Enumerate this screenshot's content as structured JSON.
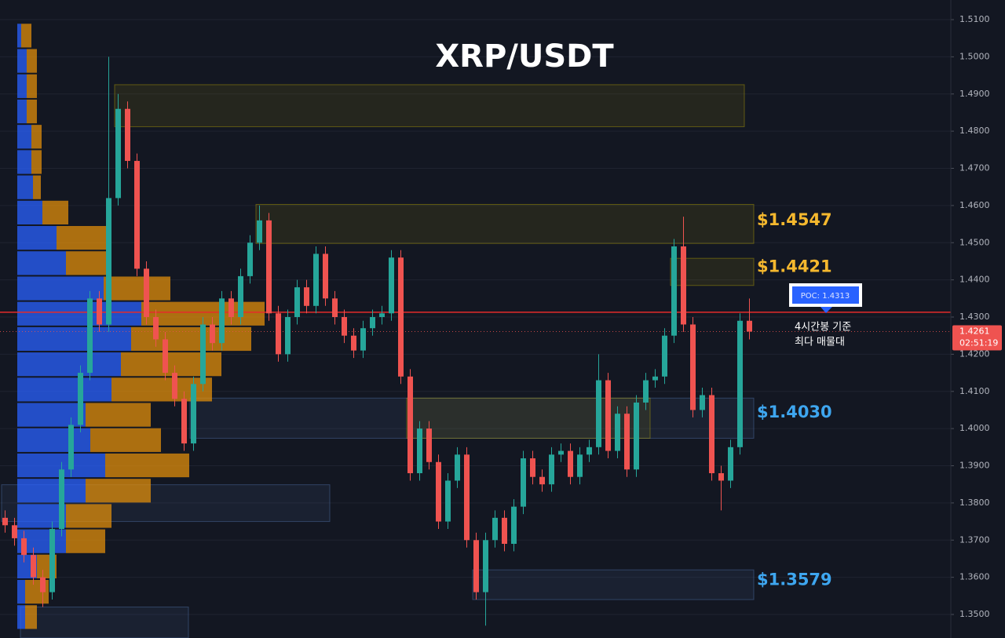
{
  "chart_data": {
    "type": "candlestick",
    "title": "XRP/USDT",
    "ylim": [
      1.34367,
      1.51528
    ],
    "yticks": [
      {
        "value": 1.35,
        "label": "1.3500"
      },
      {
        "value": 1.36,
        "label": "1.3600"
      },
      {
        "value": 1.37,
        "label": "1.3700"
      },
      {
        "value": 1.38,
        "label": "1.3800"
      },
      {
        "value": 1.39,
        "label": "1.3900"
      },
      {
        "value": 1.4,
        "label": "1.4000"
      },
      {
        "value": 1.41,
        "label": "1.4100"
      },
      {
        "value": 1.42,
        "label": "1.4200"
      },
      {
        "value": 1.43,
        "label": "1.4300"
      },
      {
        "value": 1.44,
        "label": "1.4400"
      },
      {
        "value": 1.45,
        "label": "1.4500"
      },
      {
        "value": 1.46,
        "label": "1.4600"
      },
      {
        "value": 1.47,
        "label": "1.4700"
      },
      {
        "value": 1.48,
        "label": "1.4800"
      },
      {
        "value": 1.49,
        "label": "1.4900"
      },
      {
        "value": 1.5,
        "label": "1.5000"
      },
      {
        "value": 1.51,
        "label": "1.5100"
      }
    ],
    "grid": true,
    "up_color": "#26a69a",
    "down_color": "#ef5350",
    "open": [
      1.376,
      1.374,
      1.3705,
      1.366,
      1.36,
      1.356,
      1.373,
      1.389,
      1.401,
      1.415,
      1.435,
      1.428,
      1.462,
      1.486,
      1.472,
      1.443,
      1.43,
      1.424,
      1.415,
      1.408,
      1.396,
      1.412,
      1.428,
      1.423,
      1.435,
      1.43,
      1.441,
      1.45,
      1.456,
      1.431,
      1.42,
      1.43,
      1.438,
      1.433,
      1.447,
      1.435,
      1.43,
      1.425,
      1.421,
      1.427,
      1.43,
      1.431,
      1.446,
      1.414,
      1.388,
      1.4,
      1.391,
      1.375,
      1.386,
      1.393,
      1.37,
      1.356,
      1.37,
      1.376,
      1.369,
      1.379,
      1.392,
      1.387,
      1.385,
      1.393,
      1.394,
      1.387,
      1.393,
      1.395,
      1.413,
      1.394,
      1.404,
      1.389,
      1.407,
      1.413,
      1.414,
      1.425,
      1.449,
      1.428,
      1.405,
      1.409,
      1.388,
      1.386,
      1.395,
      1.429
    ],
    "high": [
      1.378,
      1.376,
      1.3725,
      1.368,
      1.362,
      1.375,
      1.391,
      1.403,
      1.417,
      1.437,
      1.437,
      1.5,
      1.49,
      1.488,
      1.474,
      1.445,
      1.432,
      1.426,
      1.417,
      1.41,
      1.414,
      1.43,
      1.43,
      1.437,
      1.437,
      1.443,
      1.452,
      1.46,
      1.458,
      1.433,
      1.432,
      1.44,
      1.44,
      1.449,
      1.449,
      1.437,
      1.432,
      1.427,
      1.429,
      1.432,
      1.433,
      1.448,
      1.448,
      1.416,
      1.402,
      1.402,
      1.393,
      1.388,
      1.395,
      1.395,
      1.372,
      1.372,
      1.378,
      1.378,
      1.381,
      1.394,
      1.394,
      1.389,
      1.395,
      1.396,
      1.396,
      1.395,
      1.397,
      1.42,
      1.415,
      1.406,
      1.406,
      1.409,
      1.415,
      1.416,
      1.427,
      1.451,
      1.457,
      1.43,
      1.411,
      1.411,
      1.39,
      1.397,
      1.431,
      1.435
    ],
    "low": [
      1.372,
      1.3685,
      1.364,
      1.358,
      1.352,
      1.354,
      1.371,
      1.387,
      1.399,
      1.413,
      1.426,
      1.426,
      1.46,
      1.47,
      1.441,
      1.428,
      1.422,
      1.413,
      1.406,
      1.394,
      1.394,
      1.41,
      1.421,
      1.421,
      1.428,
      1.428,
      1.439,
      1.448,
      1.429,
      1.418,
      1.418,
      1.428,
      1.431,
      1.431,
      1.433,
      1.428,
      1.423,
      1.419,
      1.419,
      1.425,
      1.428,
      1.429,
      1.412,
      1.386,
      1.386,
      1.389,
      1.373,
      1.373,
      1.384,
      1.368,
      1.354,
      1.347,
      1.368,
      1.367,
      1.367,
      1.377,
      1.385,
      1.383,
      1.383,
      1.391,
      1.385,
      1.385,
      1.391,
      1.393,
      1.392,
      1.392,
      1.387,
      1.387,
      1.405,
      1.411,
      1.412,
      1.423,
      1.426,
      1.403,
      1.403,
      1.386,
      1.378,
      1.384,
      1.393,
      1.424
    ],
    "close": [
      1.374,
      1.3705,
      1.366,
      1.36,
      1.356,
      1.373,
      1.389,
      1.401,
      1.415,
      1.435,
      1.428,
      1.462,
      1.486,
      1.472,
      1.443,
      1.43,
      1.424,
      1.415,
      1.408,
      1.396,
      1.412,
      1.428,
      1.423,
      1.435,
      1.43,
      1.441,
      1.45,
      1.456,
      1.431,
      1.42,
      1.43,
      1.438,
      1.433,
      1.447,
      1.435,
      1.43,
      1.425,
      1.421,
      1.427,
      1.43,
      1.431,
      1.446,
      1.414,
      1.388,
      1.4,
      1.391,
      1.375,
      1.386,
      1.393,
      1.37,
      1.356,
      1.37,
      1.376,
      1.369,
      1.379,
      1.392,
      1.387,
      1.385,
      1.393,
      1.394,
      1.387,
      1.393,
      1.395,
      1.413,
      1.394,
      1.404,
      1.389,
      1.407,
      1.413,
      1.414,
      1.425,
      1.449,
      1.428,
      1.405,
      1.409,
      1.388,
      1.386,
      1.395,
      1.429,
      1.4261
    ],
    "volume_profile": {
      "bins": [
        1.3459,
        1.3527,
        1.3595,
        1.3663,
        1.3731,
        1.3799,
        1.3867,
        1.3935,
        1.4003,
        1.4071,
        1.4139,
        1.4207,
        1.4275,
        1.4343,
        1.4411,
        1.4479,
        1.4547,
        1.4615,
        1.4683,
        1.4751,
        1.4819,
        1.4887,
        1.4955,
        1.5023,
        1.5091
      ],
      "up": [
        10,
        10,
        25,
        62,
        62,
        87,
        112,
        93,
        87,
        120,
        132,
        145,
        158,
        110,
        62,
        50,
        32,
        20,
        18,
        18,
        12,
        12,
        12,
        5
      ],
      "down": [
        15,
        30,
        25,
        50,
        58,
        83,
        107,
        90,
        83,
        128,
        128,
        153,
        157,
        85,
        58,
        70,
        33,
        10,
        13,
        13,
        13,
        13,
        13,
        13
      ],
      "up_color": "#2962ff",
      "down_color": "#e08e0b"
    },
    "zones": [
      {
        "top": 1.4925,
        "bottom": 1.4812,
        "start": 12,
        "end": 78,
        "color": "#c8b400"
      },
      {
        "top": 1.4603,
        "bottom": 1.4498,
        "start": 27,
        "end": 79,
        "color": "#c8b400"
      },
      {
        "top": 1.4458,
        "bottom": 1.4385,
        "start": 71,
        "end": 79,
        "color": "#c8b400"
      },
      {
        "top": 1.4082,
        "bottom": 1.3974,
        "start": 20,
        "end": 79,
        "color": "#5a7fbf"
      },
      {
        "top": 1.4082,
        "bottom": 1.3974,
        "start": 43,
        "end": 68,
        "color": "#c8b400"
      },
      {
        "top": 1.3849,
        "bottom": 1.375,
        "start": 0,
        "end": 34,
        "color": "#5a7fbf"
      },
      {
        "top": 1.362,
        "bottom": 1.354,
        "start": 50,
        "end": 79,
        "color": "#5a7fbf"
      },
      {
        "top": 1.352,
        "bottom": 1.3437,
        "start": 2,
        "end": 19,
        "color": "#5a7fbf"
      }
    ],
    "annotations": [
      {
        "text": "$1.4547",
        "level": 1.4547,
        "color": "#f5b82e"
      },
      {
        "text": "$1.4421",
        "level": 1.4421,
        "color": "#f5b82e"
      },
      {
        "text": "$1.4030",
        "level": 1.403,
        "color": "#3ea6ef"
      },
      {
        "text": "$1.3579",
        "level": 1.3579,
        "color": "#3ea6ef"
      }
    ],
    "poc": 1.4313,
    "poc_label": "POC: 1.4313",
    "poc_color": "#e52b2b",
    "note": [
      "4시간봉 기준",
      "최다 매물대"
    ],
    "last_price_label": "1.4261",
    "countdown": "02:51:19"
  }
}
